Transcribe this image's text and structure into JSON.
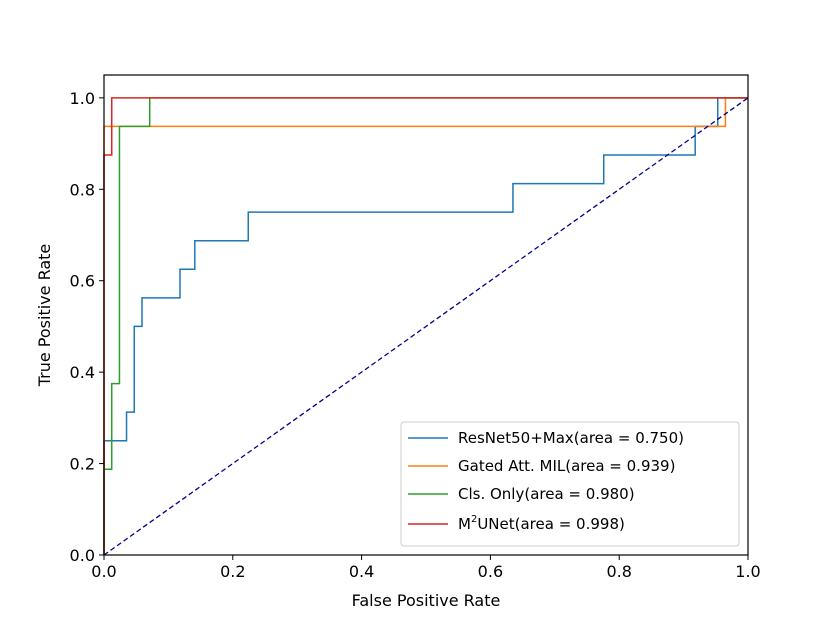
{
  "chart_data": {
    "type": "line",
    "title": "",
    "xlabel": "False Positive Rate",
    "ylabel": "True Positive Rate",
    "xlim": [
      0.0,
      1.0
    ],
    "ylim": [
      0.0,
      1.05
    ],
    "xticks": [
      0.0,
      0.2,
      0.4,
      0.6,
      0.8,
      1.0
    ],
    "xtick_labels": [
      "0.0",
      "0.2",
      "0.4",
      "0.6",
      "0.8",
      "1.0"
    ],
    "yticks": [
      0.0,
      0.2,
      0.4,
      0.6,
      0.8,
      1.0
    ],
    "ytick_labels": [
      "0.0",
      "0.2",
      "0.4",
      "0.6",
      "0.8",
      "1.0"
    ],
    "grid": false,
    "legend_position": "lower-right",
    "series": [
      {
        "name": "ResNet50+Max(area = 0.750)",
        "label_main": "ResNet50+Max(area = 0.750)",
        "color": "#1f77b4",
        "x": [
          0.0,
          0.0,
          0.035,
          0.035,
          0.047,
          0.047,
          0.059,
          0.059,
          0.118,
          0.118,
          0.141,
          0.141,
          0.224,
          0.224,
          0.635,
          0.635,
          0.776,
          0.776,
          0.918,
          0.918,
          0.953,
          0.953,
          1.0
        ],
        "y": [
          0.0,
          0.25,
          0.25,
          0.3125,
          0.3125,
          0.5,
          0.5,
          0.5625,
          0.5625,
          0.625,
          0.625,
          0.6875,
          0.6875,
          0.75,
          0.75,
          0.8125,
          0.8125,
          0.875,
          0.875,
          0.9375,
          0.9375,
          1.0,
          1.0
        ]
      },
      {
        "name": "Gated Att. MIL(area = 0.939)",
        "label_main": "Gated Att. MIL(area = 0.939)",
        "color": "#ff7f0e",
        "x": [
          0.0,
          0.0,
          0.965,
          0.965,
          1.0
        ],
        "y": [
          0.0,
          0.9375,
          0.9375,
          1.0,
          1.0
        ]
      },
      {
        "name": "Cls. Only(area = 0.980)",
        "label_main": "Cls. Only(area = 0.980)",
        "color": "#2ca02c",
        "x": [
          0.0,
          0.0,
          0.012,
          0.012,
          0.024,
          0.024,
          0.071,
          0.071,
          1.0
        ],
        "y": [
          0.0,
          0.1875,
          0.1875,
          0.375,
          0.375,
          0.9375,
          0.9375,
          1.0,
          1.0
        ]
      },
      {
        "name": "M2UNet(area = 0.998)",
        "label_main": "UNet(area = 0.998)",
        "label_prefix": "M",
        "label_sup": "2",
        "color": "#d62728",
        "x": [
          0.0,
          0.0,
          0.012,
          0.012,
          1.0
        ],
        "y": [
          0.0,
          0.875,
          0.875,
          1.0,
          1.0
        ]
      }
    ],
    "reference_line": {
      "name": "chance",
      "color": "#00008b",
      "style": "dashed",
      "x": [
        0.0,
        1.0
      ],
      "y": [
        0.0,
        1.0
      ]
    }
  }
}
